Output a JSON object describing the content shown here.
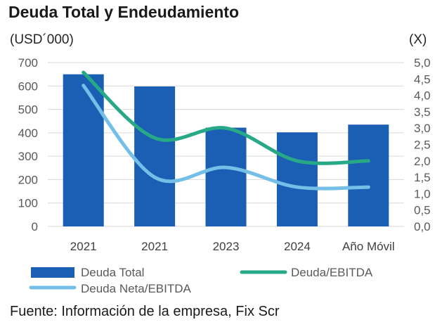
{
  "header": {
    "title": "Deuda Total y Endeudamiento",
    "unit_left": "(USD´000)",
    "unit_right": "(X)"
  },
  "footer": {
    "source": "Fuente: Información de la empresa, Fix Scr"
  },
  "chart_data": {
    "type": "bar",
    "title": "Deuda Total y Endeudamiento",
    "categories": [
      "2021",
      "2021",
      "2023",
      "2024",
      "Año Móvil"
    ],
    "y_left": {
      "label": "(USD´000)",
      "ylim": [
        0,
        700
      ],
      "ticks": [
        "0",
        "100",
        "200",
        "300",
        "400",
        "500",
        "600",
        "700"
      ]
    },
    "y_right": {
      "label": "(X)",
      "ylim": [
        0,
        5
      ],
      "ticks": [
        "0,0",
        "0,5",
        "1,0",
        "1,5",
        "2,0",
        "2,5",
        "3,0",
        "3,5",
        "4,0",
        "4,5",
        "5,0"
      ]
    },
    "grid": true,
    "legend_placement": "bottom",
    "series": [
      {
        "name": "Deuda Total",
        "type": "bar",
        "axis": "left",
        "color": "#1a5fb4",
        "values": [
          650,
          598,
          422,
          402,
          435
        ]
      },
      {
        "name": "Deuda/EBITDA",
        "type": "line",
        "axis": "right",
        "color": "#27a887",
        "values": [
          4.7,
          2.7,
          3.0,
          2.0,
          2.0
        ]
      },
      {
        "name": "Deuda Neta/EBITDA",
        "type": "line",
        "axis": "right",
        "color": "#73bfe8",
        "values": [
          4.3,
          1.5,
          1.8,
          1.2,
          1.2
        ]
      }
    ]
  }
}
